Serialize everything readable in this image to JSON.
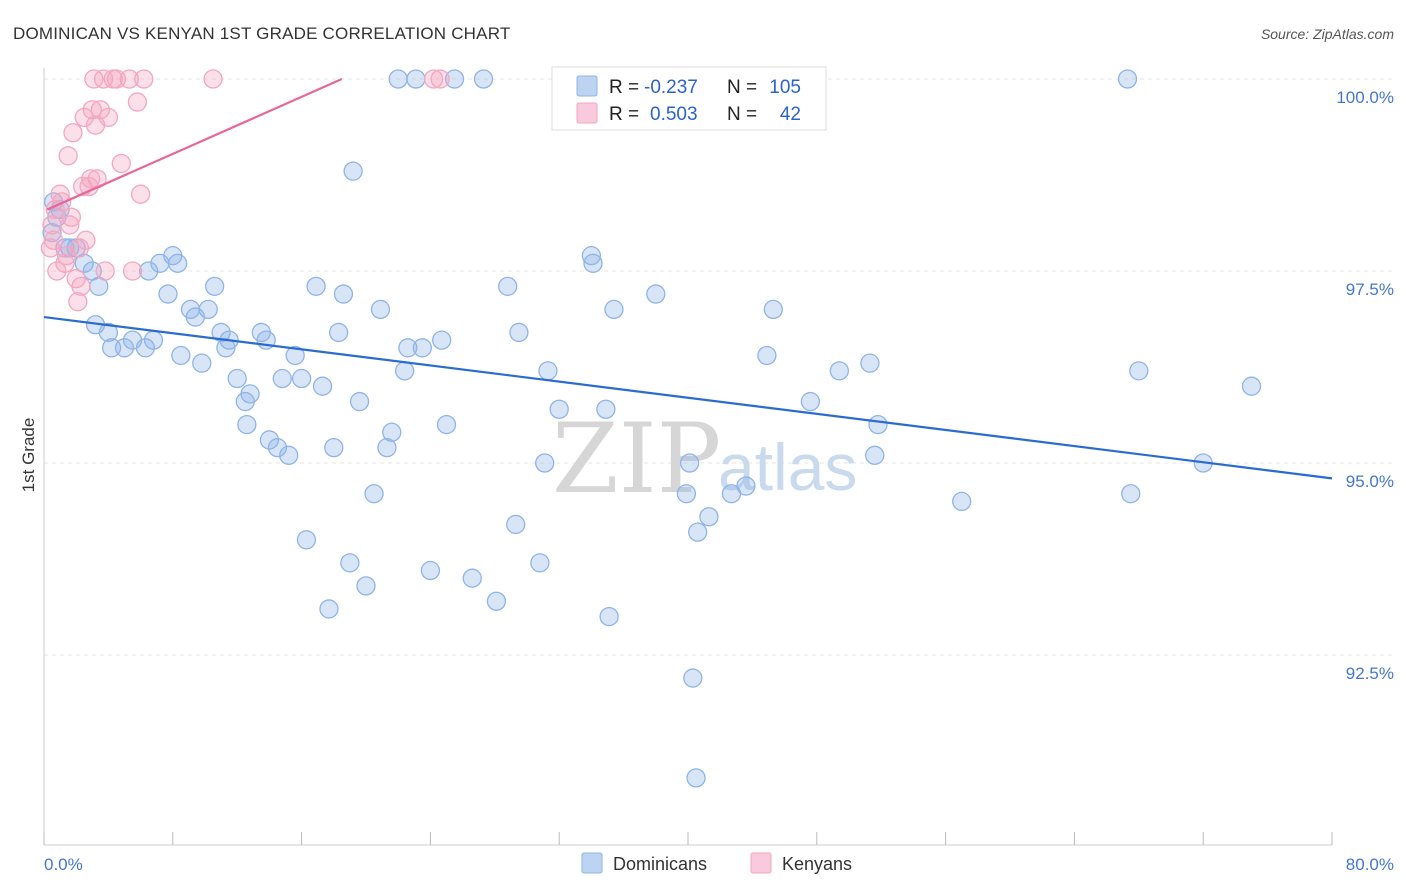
{
  "chart_data": {
    "type": "scatter",
    "title": "DOMINICAN VS KENYAN 1ST GRADE CORRELATION CHART",
    "source": "Source: ZipAtlas.com",
    "ylabel": "1st Grade",
    "xlim": [
      0,
      80
    ],
    "ylim": [
      90.2,
      100.5
    ],
    "x_tick_labels": [
      {
        "value": 0,
        "label": "0.0%"
      },
      {
        "value": 80,
        "label": "80.0%"
      }
    ],
    "y_ticks": [
      {
        "value": 100,
        "label": "100.0%"
      },
      {
        "value": 97.5,
        "label": "97.5%"
      },
      {
        "value": 95,
        "label": "95.0%"
      },
      {
        "value": 92.5,
        "label": "92.5%"
      }
    ],
    "watermark": {
      "zip": "ZIP",
      "atlas": "atlas"
    },
    "legend": [
      {
        "label_r": "R =",
        "r": "-0.237",
        "label_n": "N =",
        "n": "105"
      },
      {
        "label_r": "R =",
        "r": "0.503",
        "label_n": "N =",
        "n": "42"
      }
    ],
    "series": [
      {
        "name": "Dominicans",
        "color": "#8fb4e8",
        "line_color": "#2a6bd1",
        "trend": {
          "x": [
            0,
            80
          ],
          "y": [
            96.9,
            94.8
          ]
        },
        "points": [
          [
            0.5,
            98.0
          ],
          [
            0.6,
            98.4
          ],
          [
            0.8,
            98.2
          ],
          [
            1.0,
            98.3
          ],
          [
            1.3,
            97.8
          ],
          [
            1.6,
            97.8
          ],
          [
            2.0,
            97.8
          ],
          [
            2.5,
            97.6
          ],
          [
            3.0,
            97.5
          ],
          [
            3.4,
            97.3
          ],
          [
            3.2,
            96.8
          ],
          [
            4.0,
            96.7
          ],
          [
            4.2,
            96.5
          ],
          [
            5.0,
            96.5
          ],
          [
            5.5,
            96.6
          ],
          [
            6.3,
            96.5
          ],
          [
            6.8,
            96.6
          ],
          [
            6.5,
            97.5
          ],
          [
            7.2,
            97.6
          ],
          [
            7.7,
            97.2
          ],
          [
            8.0,
            97.7
          ],
          [
            8.3,
            97.6
          ],
          [
            8.5,
            96.4
          ],
          [
            9.1,
            97.0
          ],
          [
            9.4,
            96.9
          ],
          [
            9.8,
            96.3
          ],
          [
            10.2,
            97.0
          ],
          [
            10.6,
            97.3
          ],
          [
            11.0,
            96.7
          ],
          [
            11.5,
            96.6
          ],
          [
            11.3,
            96.5
          ],
          [
            12.0,
            96.1
          ],
          [
            12.5,
            95.8
          ],
          [
            12.8,
            95.9
          ],
          [
            12.6,
            95.5
          ],
          [
            13.5,
            96.7
          ],
          [
            13.8,
            96.6
          ],
          [
            14.0,
            95.3
          ],
          [
            14.5,
            95.2
          ],
          [
            14.8,
            96.1
          ],
          [
            15.2,
            95.1
          ],
          [
            15.6,
            96.4
          ],
          [
            16.0,
            96.1
          ],
          [
            16.3,
            94.0
          ],
          [
            16.9,
            97.3
          ],
          [
            17.3,
            96.0
          ],
          [
            17.7,
            93.1
          ],
          [
            18.0,
            95.2
          ],
          [
            18.3,
            96.7
          ],
          [
            18.6,
            97.2
          ],
          [
            19.0,
            93.7
          ],
          [
            19.2,
            98.8
          ],
          [
            19.6,
            95.8
          ],
          [
            20.0,
            93.4
          ],
          [
            20.5,
            94.6
          ],
          [
            20.9,
            97.0
          ],
          [
            21.3,
            95.2
          ],
          [
            21.6,
            95.4
          ],
          [
            22.0,
            100.0
          ],
          [
            22.4,
            96.2
          ],
          [
            22.6,
            96.5
          ],
          [
            23.1,
            100.0
          ],
          [
            23.5,
            96.5
          ],
          [
            24.0,
            93.6
          ],
          [
            24.7,
            96.6
          ],
          [
            25.0,
            95.5
          ],
          [
            25.5,
            100.0
          ],
          [
            26.6,
            93.5
          ],
          [
            27.3,
            100.0
          ],
          [
            28.1,
            93.2
          ],
          [
            28.8,
            97.3
          ],
          [
            29.3,
            94.2
          ],
          [
            29.5,
            96.7
          ],
          [
            30.8,
            93.7
          ],
          [
            31.1,
            95.0
          ],
          [
            31.3,
            96.2
          ],
          [
            32.0,
            95.7
          ],
          [
            33.3,
            100.0
          ],
          [
            34.0,
            97.7
          ],
          [
            34.1,
            97.6
          ],
          [
            34.9,
            95.7
          ],
          [
            35.1,
            93.0
          ],
          [
            35.4,
            97.0
          ],
          [
            38.0,
            97.2
          ],
          [
            39.9,
            94.6
          ],
          [
            40.1,
            95.0
          ],
          [
            40.3,
            92.2
          ],
          [
            40.5,
            90.9
          ],
          [
            40.6,
            94.1
          ],
          [
            41.3,
            94.3
          ],
          [
            42.7,
            94.6
          ],
          [
            43.6,
            94.7
          ],
          [
            44.9,
            96.4
          ],
          [
            45.3,
            97.0
          ],
          [
            47.6,
            95.8
          ],
          [
            49.4,
            96.2
          ],
          [
            51.3,
            96.3
          ],
          [
            51.6,
            95.1
          ],
          [
            51.8,
            95.5
          ],
          [
            57.0,
            94.5
          ],
          [
            67.3,
            100.0
          ],
          [
            67.5,
            94.6
          ],
          [
            68.0,
            96.2
          ],
          [
            72.0,
            95.0
          ],
          [
            75.0,
            96.0
          ]
        ]
      },
      {
        "name": "Kenyans",
        "color": "#f4a6c0",
        "line_color": "#e8679a",
        "trend": {
          "x": [
            0.2,
            18.5
          ],
          "y": [
            98.3,
            100.0
          ]
        },
        "points": [
          [
            0.4,
            97.8
          ],
          [
            0.5,
            98.1
          ],
          [
            0.6,
            97.9
          ],
          [
            0.7,
            98.3
          ],
          [
            0.8,
            97.5
          ],
          [
            1.0,
            98.5
          ],
          [
            1.1,
            98.4
          ],
          [
            1.3,
            97.6
          ],
          [
            1.4,
            97.7
          ],
          [
            1.5,
            99.0
          ],
          [
            1.6,
            98.1
          ],
          [
            1.7,
            98.2
          ],
          [
            1.8,
            99.3
          ],
          [
            2.0,
            97.4
          ],
          [
            2.1,
            97.1
          ],
          [
            2.2,
            97.8
          ],
          [
            2.3,
            97.3
          ],
          [
            2.4,
            98.6
          ],
          [
            2.5,
            99.5
          ],
          [
            2.6,
            97.9
          ],
          [
            2.8,
            98.6
          ],
          [
            2.9,
            98.7
          ],
          [
            3.0,
            99.6
          ],
          [
            3.1,
            100.0
          ],
          [
            3.2,
            99.4
          ],
          [
            3.3,
            98.7
          ],
          [
            3.5,
            99.6
          ],
          [
            3.7,
            100.0
          ],
          [
            3.8,
            97.5
          ],
          [
            4.0,
            99.5
          ],
          [
            4.3,
            100.0
          ],
          [
            4.5,
            100.0
          ],
          [
            4.8,
            98.9
          ],
          [
            5.3,
            100.0
          ],
          [
            5.5,
            97.5
          ],
          [
            5.8,
            99.7
          ],
          [
            6.0,
            98.5
          ],
          [
            6.2,
            100.0
          ],
          [
            10.5,
            100.0
          ],
          [
            24.2,
            100.0
          ],
          [
            24.6,
            100.0
          ],
          [
            32.8,
            100.0
          ]
        ]
      }
    ]
  }
}
